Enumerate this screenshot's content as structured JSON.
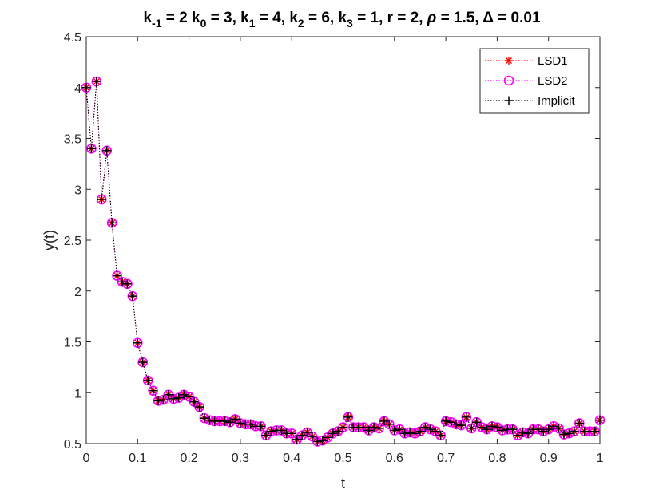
{
  "chart_data": {
    "type": "line",
    "title_parts": {
      "k_m1_base": "k",
      "k_m1_sub": "-1",
      "k_m1_val": " = 2 ",
      "k0_base": "k",
      "k0_sub": "0",
      "k0_val": " = 3, ",
      "k1_base": "k",
      "k1_sub": "1",
      "k1_val": " = 4, ",
      "k2_base": "k",
      "k2_sub": "2",
      "k2_val": " = 6, ",
      "k3_base": "k",
      "k3_sub": "3",
      "k3_val": " = 1, r = 2, ",
      "rho": "ρ",
      "rho_val": " = 1.5, ",
      "delta": "Δ",
      "delta_val": " = 0.01"
    },
    "xlabel": "t",
    "ylabel": "y(t)",
    "xlim": [
      0,
      1
    ],
    "ylim": [
      0.5,
      4.5
    ],
    "xticks": [
      0,
      0.1,
      0.2,
      0.3,
      0.4,
      0.5,
      0.6,
      0.7,
      0.8,
      0.9,
      1
    ],
    "xtick_labels": [
      "0",
      "0.1",
      "0.2",
      "0.3",
      "0.4",
      "0.5",
      "0.6",
      "0.7",
      "0.8",
      "0.9",
      "1"
    ],
    "yticks": [
      0.5,
      1,
      1.5,
      2,
      2.5,
      3,
      3.5,
      4,
      4.5
    ],
    "ytick_labels": [
      "0.5",
      "1",
      "1.5",
      "2",
      "2.5",
      "3",
      "3.5",
      "4",
      "4.5"
    ],
    "grid": false,
    "legend_placement": "top-right",
    "x": [
      0,
      0.01,
      0.02,
      0.03,
      0.04,
      0.05,
      0.06,
      0.07,
      0.08,
      0.09,
      0.1,
      0.11,
      0.12,
      0.13,
      0.14,
      0.15,
      0.16,
      0.17,
      0.18,
      0.19,
      0.2,
      0.21,
      0.22,
      0.23,
      0.24,
      0.25,
      0.26,
      0.27,
      0.28,
      0.29,
      0.3,
      0.31,
      0.32,
      0.33,
      0.34,
      0.35,
      0.36,
      0.37,
      0.38,
      0.39,
      0.4,
      0.41,
      0.42,
      0.43,
      0.44,
      0.45,
      0.46,
      0.47,
      0.48,
      0.49,
      0.5,
      0.51,
      0.52,
      0.53,
      0.54,
      0.55,
      0.56,
      0.57,
      0.58,
      0.59,
      0.6,
      0.61,
      0.62,
      0.63,
      0.64,
      0.65,
      0.66,
      0.67,
      0.68,
      0.69,
      0.7,
      0.71,
      0.72,
      0.73,
      0.74,
      0.75,
      0.76,
      0.77,
      0.78,
      0.79,
      0.8,
      0.81,
      0.82,
      0.83,
      0.84,
      0.85,
      0.86,
      0.87,
      0.88,
      0.89,
      0.9,
      0.91,
      0.92,
      0.93,
      0.94,
      0.95,
      0.96,
      0.97,
      0.98,
      0.99,
      1
    ],
    "y": [
      4.0,
      3.4,
      4.06,
      2.9,
      3.38,
      2.67,
      2.15,
      2.09,
      2.07,
      1.95,
      1.49,
      1.3,
      1.12,
      1.02,
      0.92,
      0.93,
      0.98,
      0.94,
      0.95,
      0.98,
      0.96,
      0.91,
      0.86,
      0.75,
      0.73,
      0.72,
      0.72,
      0.72,
      0.71,
      0.74,
      0.7,
      0.69,
      0.69,
      0.67,
      0.67,
      0.58,
      0.62,
      0.63,
      0.63,
      0.6,
      0.6,
      0.54,
      0.58,
      0.61,
      0.57,
      0.52,
      0.53,
      0.56,
      0.6,
      0.62,
      0.66,
      0.76,
      0.66,
      0.66,
      0.66,
      0.63,
      0.66,
      0.65,
      0.72,
      0.69,
      0.63,
      0.64,
      0.6,
      0.61,
      0.6,
      0.62,
      0.66,
      0.64,
      0.62,
      0.58,
      0.72,
      0.71,
      0.69,
      0.68,
      0.76,
      0.65,
      0.71,
      0.66,
      0.64,
      0.67,
      0.66,
      0.63,
      0.64,
      0.64,
      0.58,
      0.61,
      0.6,
      0.64,
      0.64,
      0.62,
      0.64,
      0.67,
      0.65,
      0.59,
      0.6,
      0.62,
      0.7,
      0.62,
      0.62,
      0.62,
      0.73
    ],
    "series": [
      {
        "name": "LSD1",
        "color": "#ff0000",
        "marker": "asterisk",
        "line": "dotted"
      },
      {
        "name": "LSD2",
        "color": "#ff00ff",
        "marker": "circle",
        "line": "dotted"
      },
      {
        "name": "Implicit",
        "color": "#000000",
        "marker": "plus",
        "line": "dotted"
      }
    ]
  }
}
